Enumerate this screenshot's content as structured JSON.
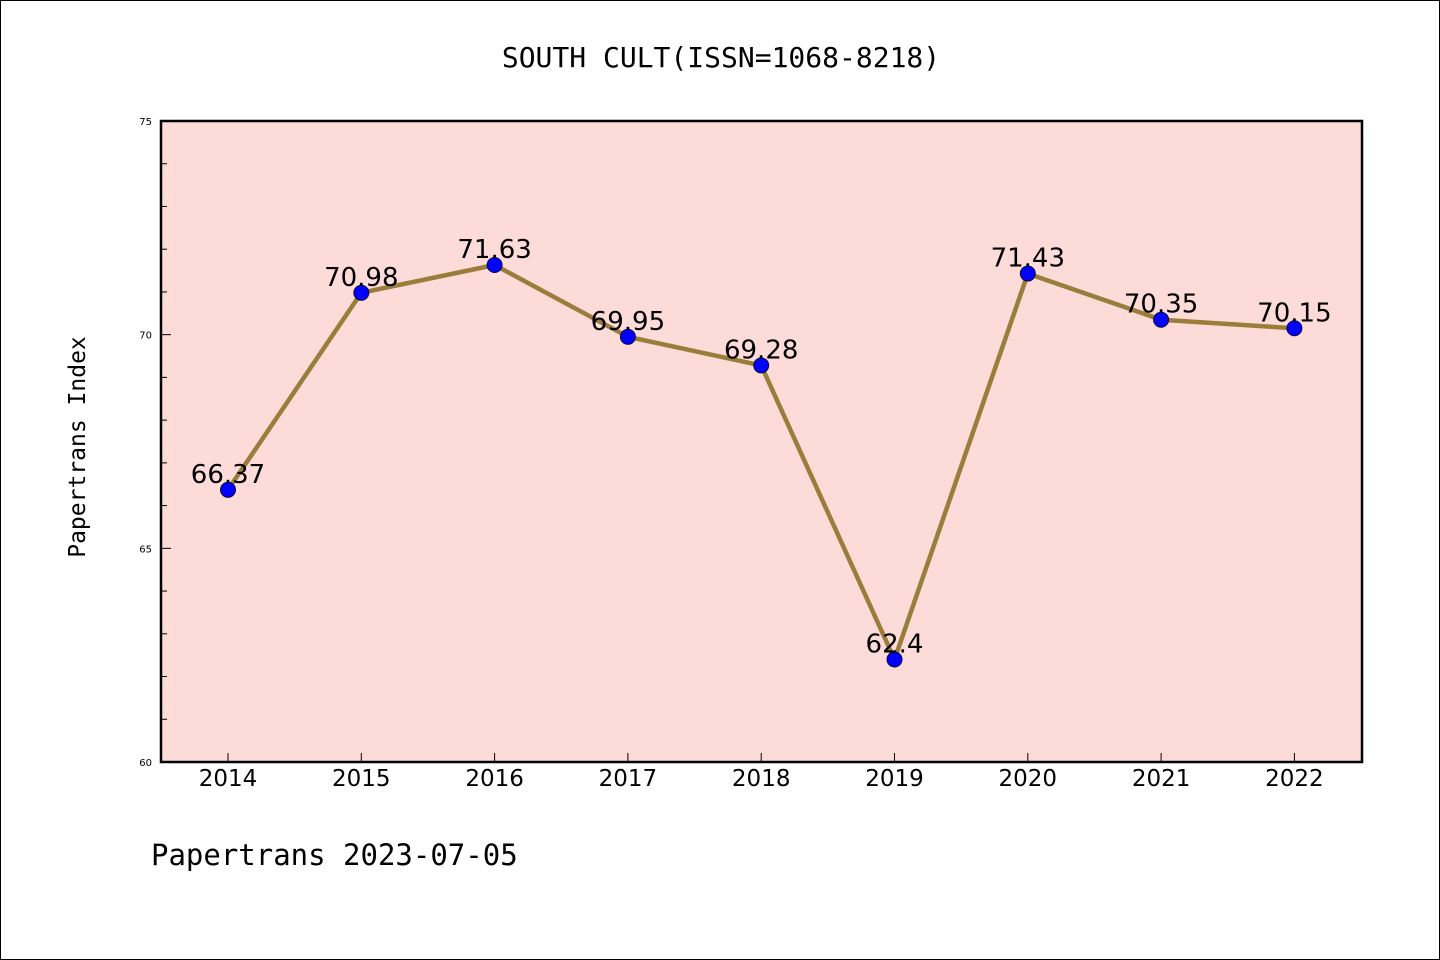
{
  "chart_data": {
    "type": "line",
    "title": "SOUTH CULT(ISSN=1068-8218)",
    "xlabel": "",
    "ylabel": "Papertrans Index",
    "categories": [
      "2014",
      "2015",
      "2016",
      "2017",
      "2018",
      "2019",
      "2020",
      "2021",
      "2022"
    ],
    "series": [
      {
        "values": [
          66.37,
          70.98,
          71.63,
          69.95,
          69.28,
          62.4,
          71.43,
          70.35,
          70.15
        ],
        "value_labels": [
          "66.37",
          "70.98",
          "71.63",
          "69.95",
          "69.28",
          "62.4",
          "71.43",
          "70.35",
          "70.15"
        ],
        "line_color": "#9a7d3a",
        "marker_color": "#0000ff"
      }
    ],
    "ylim": [
      60,
      75
    ],
    "y_major_ticks": [
      60,
      65,
      70,
      75
    ],
    "y_minor_step": 1,
    "y_tick_labels": [
      "60",
      "65",
      "70",
      "75"
    ],
    "grid": false,
    "legend": "none",
    "plot_background": "#fddbd8",
    "footer": "Papertrans 2023-07-05"
  }
}
